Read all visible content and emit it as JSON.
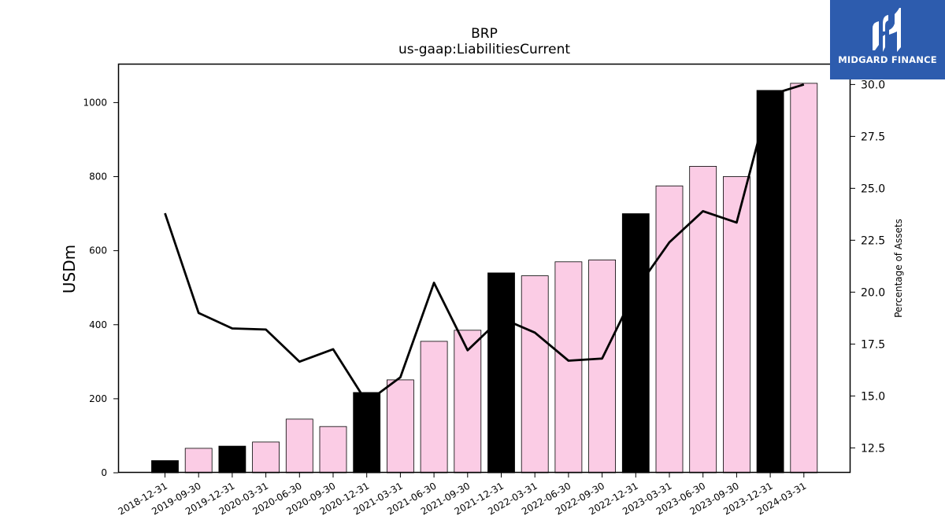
{
  "chart_data": {
    "type": "bar",
    "title": "BRP",
    "subtitle": "us-gaap:LiabilitiesCurrent",
    "ylabel": "USDm",
    "y2label": "Percentage of Assets",
    "ylim": [
      0,
      1105
    ],
    "y2lim": [
      11.3,
      31.0
    ],
    "yticks": [
      0,
      200,
      400,
      600,
      800,
      1000
    ],
    "y2ticks": [
      12.5,
      15.0,
      17.5,
      20.0,
      22.5,
      25.0,
      27.5,
      30.0
    ],
    "categories": [
      "2018-12-31",
      "2019-09-30",
      "2019-12-31",
      "2020-03-31",
      "2020-06-30",
      "2020-09-30",
      "2020-12-31",
      "2021-03-31",
      "2021-06-30",
      "2021-09-30",
      "2021-12-31",
      "2022-03-31",
      "2022-06-30",
      "2022-09-30",
      "2022-12-31",
      "2023-03-31",
      "2023-06-30",
      "2023-09-30",
      "2023-12-31",
      "2024-03-31"
    ],
    "series": [
      {
        "kind": "bar",
        "axis": "left",
        "values": [
          33,
          66,
          72,
          83,
          145,
          125,
          217,
          251,
          355,
          385,
          540,
          532,
          570,
          575,
          700,
          775,
          828,
          800,
          1033,
          1052
        ],
        "year_end": [
          true,
          false,
          true,
          false,
          false,
          false,
          true,
          false,
          false,
          false,
          true,
          false,
          false,
          false,
          true,
          false,
          false,
          false,
          true,
          false
        ]
      },
      {
        "kind": "line",
        "axis": "right",
        "values": [
          23.8,
          19.0,
          18.25,
          18.2,
          16.65,
          17.25,
          14.7,
          15.9,
          20.45,
          17.2,
          18.75,
          18.05,
          16.7,
          16.8,
          20.1,
          22.4,
          23.9,
          23.35,
          29.5,
          30.0
        ]
      }
    ],
    "colors": {
      "year_end_bar": "#000000",
      "quarter_bar": "#fbcce5",
      "bar_edge": "#000000",
      "line": "#000000"
    },
    "grid": false,
    "legend": "none"
  },
  "logo": {
    "text": "MIDGARD FINANCE",
    "background": "#2d5cae"
  }
}
